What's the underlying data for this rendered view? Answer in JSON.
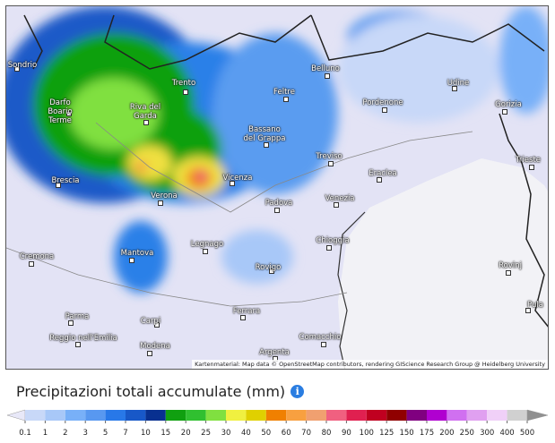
{
  "map": {
    "attribution": "Kartenmaterial: Map data © OpenStreetMap contributors, rendering GIScience Research Group @ Heidelberg University",
    "labels": [
      "Sondrio",
      "Darfo Boario Terme",
      "Trento",
      "Riva del Garda",
      "Belluno",
      "Feltre",
      "Bassano del Grappa",
      "Udine",
      "Pordenone",
      "Gorizia",
      "Trieste",
      "Treviso",
      "Eraclea",
      "Brescia",
      "Vicenza",
      "Verona",
      "Padova",
      "Venezia",
      "Legnago",
      "Chioggia",
      "Mantova",
      "Cremona",
      "Rovigo",
      "Rovinj",
      "Pula",
      "Ferrara",
      "Parma",
      "Carpi",
      "Reggio nell'Emilia",
      "Modena",
      "Comacchio",
      "Argenta"
    ]
  },
  "legend": {
    "title": "Precipitazioni totali accumulate (mm)",
    "ticks": [
      0.1,
      1,
      2,
      3,
      5,
      7,
      10,
      15,
      20,
      25,
      30,
      40,
      50,
      60,
      70,
      80,
      90,
      100,
      125,
      150,
      175,
      200,
      250,
      300,
      400,
      500
    ],
    "colors": [
      "#e8e8f8",
      "#c8d8f8",
      "#a8c8f8",
      "#78b0f8",
      "#5898f0",
      "#2878e8",
      "#1858c8",
      "#083090",
      "#10a010",
      "#30c030",
      "#80e040",
      "#f0f040",
      "#e0d000",
      "#f08000",
      "#f8a040",
      "#f0a070",
      "#f06080",
      "#e02050",
      "#c00020",
      "#900000",
      "#800080",
      "#b000d0",
      "#d070f0",
      "#e0a0f0",
      "#f0d0f8",
      "#d0d0d0",
      "#909090"
    ]
  }
}
